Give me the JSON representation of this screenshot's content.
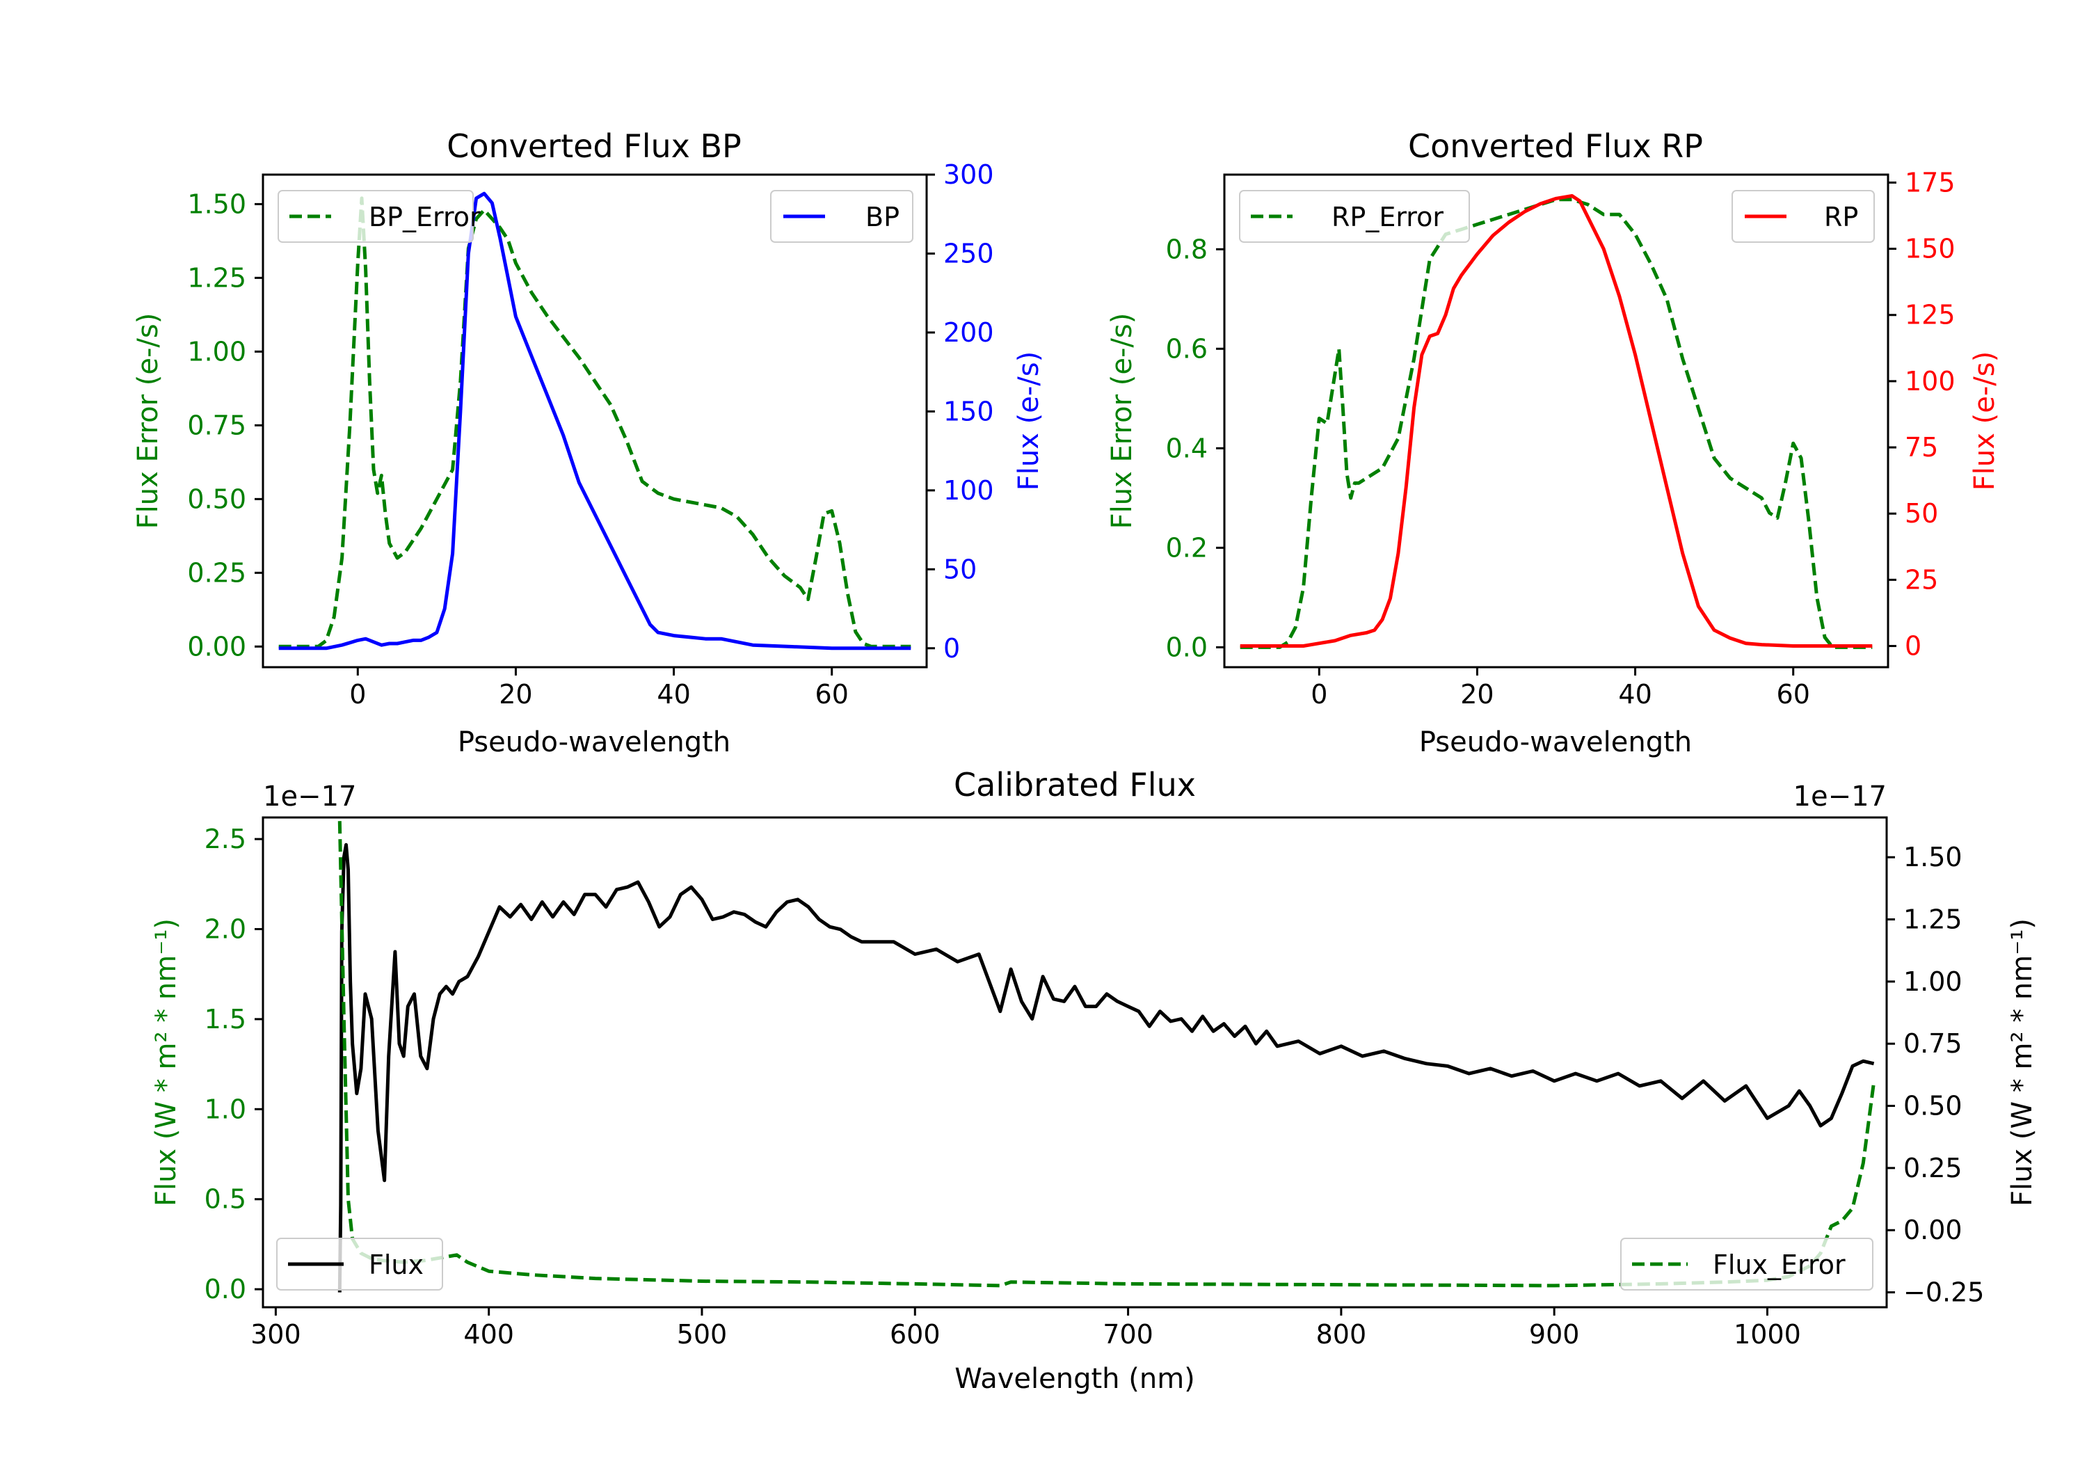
{
  "colors": {
    "bp": "#0000ff",
    "rp": "#ff0000",
    "error": "#008000",
    "flux": "#000000",
    "axis": "#000000"
  },
  "chart_data": [
    {
      "id": "bp",
      "type": "line",
      "title": "Converted Flux BP",
      "xlabel": "Pseudo-wavelength",
      "ylabel_left": "Flux Error (e-/s)",
      "ylabel_right": "Flux (e-/s)",
      "xlim": [
        -12,
        72
      ],
      "ylim_left": [
        -0.07,
        1.6
      ],
      "ylim_right": [
        -12,
        300
      ],
      "xticks": [
        0,
        20,
        40,
        60
      ],
      "xtick_labels": [
        "0",
        "20",
        "40",
        "60"
      ],
      "yticks_left": [
        0,
        0.25,
        0.5,
        0.75,
        1.0,
        1.25,
        1.5
      ],
      "ytick_labels_left": [
        "0.00",
        "0.25",
        "0.50",
        "0.75",
        "1.00",
        "1.25",
        "1.50"
      ],
      "yticks_right": [
        0,
        50,
        100,
        150,
        200,
        250,
        300
      ],
      "ytick_labels_right": [
        "0",
        "50",
        "100",
        "150",
        "200",
        "250",
        "300"
      ],
      "legend_left": {
        "label": "BP_Error",
        "position": "upper-left"
      },
      "legend_right": {
        "label": "BP",
        "position": "upper-right"
      },
      "series": [
        {
          "name": "BP_Error",
          "axis": "left",
          "style": "dashed",
          "color_key": "error",
          "x": [
            -10,
            -5,
            -4,
            -3,
            -2,
            -1,
            0,
            0.5,
            1,
            1.5,
            2,
            2.5,
            3,
            3.5,
            4,
            5,
            6,
            8,
            10,
            12,
            13,
            14,
            15,
            16,
            17,
            18,
            19,
            20,
            22,
            24,
            26,
            28,
            30,
            32,
            34,
            36,
            38,
            40,
            42,
            44,
            46,
            48,
            50,
            52,
            54,
            56,
            57,
            58,
            59,
            60,
            61,
            62,
            63,
            64,
            65,
            70
          ],
          "y": [
            0,
            0,
            0.02,
            0.1,
            0.3,
            0.75,
            1.3,
            1.52,
            1.28,
            0.9,
            0.6,
            0.52,
            0.58,
            0.45,
            0.35,
            0.3,
            0.32,
            0.4,
            0.5,
            0.6,
            0.9,
            1.35,
            1.45,
            1.48,
            1.45,
            1.42,
            1.38,
            1.3,
            1.2,
            1.12,
            1.05,
            0.98,
            0.9,
            0.82,
            0.7,
            0.56,
            0.52,
            0.5,
            0.49,
            0.48,
            0.47,
            0.44,
            0.38,
            0.3,
            0.24,
            0.2,
            0.16,
            0.3,
            0.45,
            0.46,
            0.35,
            0.18,
            0.05,
            0.01,
            0,
            0
          ]
        },
        {
          "name": "BP",
          "axis": "right",
          "style": "solid",
          "color_key": "bp",
          "x": [
            -10,
            -6,
            -4,
            -2,
            0,
            1,
            2,
            3,
            4,
            5,
            6,
            7,
            8,
            9,
            10,
            11,
            12,
            13,
            14,
            15,
            16,
            17,
            18,
            19,
            20,
            22,
            24,
            26,
            28,
            30,
            32,
            34,
            36,
            37,
            38,
            40,
            42,
            44,
            46,
            48,
            50,
            55,
            60,
            70
          ],
          "y": [
            0,
            0,
            0,
            2,
            5,
            6,
            4,
            2,
            3,
            3,
            4,
            5,
            5,
            7,
            10,
            25,
            60,
            150,
            250,
            285,
            288,
            282,
            260,
            235,
            210,
            185,
            160,
            135,
            105,
            85,
            65,
            45,
            25,
            15,
            10,
            8,
            7,
            6,
            6,
            4,
            2,
            1,
            0,
            0
          ]
        }
      ]
    },
    {
      "id": "rp",
      "type": "line",
      "title": "Converted Flux RP",
      "xlabel": "Pseudo-wavelength",
      "ylabel_left": "Flux Error (e-/s)",
      "ylabel_right": "Flux (e-/s)",
      "xlim": [
        -12,
        72
      ],
      "ylim_left": [
        -0.04,
        0.95
      ],
      "ylim_right": [
        -8,
        178
      ],
      "xticks": [
        0,
        20,
        40,
        60
      ],
      "xtick_labels": [
        "0",
        "20",
        "40",
        "60"
      ],
      "yticks_left": [
        0,
        0.2,
        0.4,
        0.6,
        0.8
      ],
      "ytick_labels_left": [
        "0.0",
        "0.2",
        "0.4",
        "0.6",
        "0.8"
      ],
      "yticks_right": [
        0,
        25,
        50,
        75,
        100,
        125,
        150,
        175
      ],
      "ytick_labels_right": [
        "0",
        "25",
        "50",
        "75",
        "100",
        "125",
        "150",
        "175"
      ],
      "legend_left": {
        "label": "RP_Error",
        "position": "upper-left"
      },
      "legend_right": {
        "label": "RP",
        "position": "upper-right"
      },
      "series": [
        {
          "name": "RP_Error",
          "axis": "left",
          "style": "dashed",
          "color_key": "error",
          "x": [
            -10,
            -5,
            -4,
            -3,
            -2,
            -1,
            0,
            1,
            2,
            2.5,
            3,
            3.5,
            4,
            4.5,
            5,
            6,
            8,
            10,
            12,
            14,
            16,
            18,
            20,
            22,
            24,
            26,
            28,
            30,
            32,
            34,
            36,
            38,
            40,
            42,
            44,
            46,
            48,
            50,
            52,
            54,
            56,
            57,
            58,
            59,
            60,
            61,
            62,
            63,
            64,
            65,
            70
          ],
          "y": [
            0,
            0,
            0.01,
            0.04,
            0.12,
            0.3,
            0.46,
            0.45,
            0.55,
            0.6,
            0.48,
            0.35,
            0.3,
            0.33,
            0.33,
            0.34,
            0.36,
            0.42,
            0.58,
            0.78,
            0.83,
            0.84,
            0.85,
            0.86,
            0.87,
            0.88,
            0.89,
            0.9,
            0.9,
            0.89,
            0.87,
            0.87,
            0.83,
            0.77,
            0.7,
            0.58,
            0.48,
            0.38,
            0.34,
            0.32,
            0.3,
            0.27,
            0.26,
            0.33,
            0.41,
            0.38,
            0.25,
            0.1,
            0.02,
            0,
            0
          ]
        },
        {
          "name": "RP",
          "axis": "right",
          "style": "solid",
          "color_key": "rp",
          "x": [
            -10,
            -4,
            -2,
            0,
            2,
            4,
            6,
            7,
            8,
            9,
            10,
            11,
            12,
            13,
            14,
            15,
            16,
            17,
            18,
            20,
            22,
            24,
            26,
            28,
            30,
            32,
            33,
            34,
            36,
            38,
            40,
            42,
            44,
            46,
            48,
            50,
            52,
            54,
            56,
            60,
            65,
            70
          ],
          "y": [
            0,
            0,
            0,
            1,
            2,
            4,
            5,
            6,
            10,
            18,
            35,
            60,
            90,
            110,
            117,
            118,
            125,
            135,
            140,
            148,
            155,
            160,
            164,
            167,
            169,
            170,
            168,
            162,
            150,
            132,
            110,
            85,
            60,
            35,
            15,
            6,
            3,
            1,
            0.5,
            0,
            0,
            0
          ]
        }
      ]
    },
    {
      "id": "calibrated",
      "type": "line",
      "title": "Calibrated Flux",
      "xlabel": "Wavelength (nm)",
      "ylabel_left": "Flux (W * m² * nm⁻¹)",
      "ylabel_right": "Flux (W * m² * nm⁻¹)",
      "offset_left": "1e−17",
      "offset_right": "1e−17",
      "xlim": [
        294,
        1056
      ],
      "ylim_left": [
        -0.1,
        2.62
      ],
      "ylim_right": [
        -0.31,
        1.66
      ],
      "xticks": [
        300,
        400,
        500,
        600,
        700,
        800,
        900,
        1000
      ],
      "xtick_labels": [
        "300",
        "400",
        "500",
        "600",
        "700",
        "800",
        "900",
        "1000"
      ],
      "yticks_left": [
        0,
        0.5,
        1.0,
        1.5,
        2.0,
        2.5
      ],
      "ytick_labels_left": [
        "0.0",
        "0.5",
        "1.0",
        "1.5",
        "2.0",
        "2.5"
      ],
      "yticks_right": [
        -0.25,
        0,
        0.25,
        0.5,
        0.75,
        1.0,
        1.25,
        1.5
      ],
      "ytick_labels_right": [
        "−0.25",
        "0.00",
        "0.25",
        "0.50",
        "0.75",
        "1.00",
        "1.25",
        "1.50"
      ],
      "legend_left": {
        "label": "Flux",
        "position": "lower-left"
      },
      "legend_right": {
        "label": "Flux_Error",
        "position": "lower-right"
      },
      "series": [
        {
          "name": "Flux",
          "axis": "right",
          "style": "solid",
          "color_key": "flux",
          "x": [
            330,
            330.5,
            331,
            332,
            333,
            334,
            335,
            336,
            338,
            340,
            342,
            345,
            348,
            351,
            353,
            356,
            358,
            360,
            362,
            365,
            368,
            371,
            374,
            377,
            380,
            383,
            386,
            390,
            395,
            400,
            405,
            410,
            415,
            420,
            425,
            430,
            435,
            440,
            445,
            450,
            455,
            460,
            465,
            470,
            475,
            480,
            485,
            490,
            495,
            500,
            505,
            510,
            515,
            520,
            525,
            530,
            535,
            540,
            545,
            550,
            555,
            560,
            565,
            570,
            575,
            580,
            590,
            600,
            610,
            620,
            630,
            640,
            645,
            650,
            655,
            660,
            665,
            670,
            675,
            680,
            685,
            690,
            695,
            700,
            705,
            710,
            715,
            720,
            725,
            730,
            735,
            740,
            745,
            750,
            755,
            760,
            765,
            770,
            780,
            790,
            800,
            810,
            820,
            830,
            840,
            850,
            860,
            870,
            880,
            890,
            900,
            910,
            920,
            930,
            940,
            950,
            960,
            970,
            980,
            990,
            1000,
            1010,
            1015,
            1020,
            1025,
            1030,
            1035,
            1040,
            1045,
            1050
          ],
          "y": [
            -0.25,
            0.1,
            1.2,
            1.5,
            1.55,
            1.45,
            1.0,
            0.75,
            0.55,
            0.65,
            0.95,
            0.85,
            0.4,
            0.2,
            0.7,
            1.12,
            0.75,
            0.7,
            0.9,
            0.95,
            0.7,
            0.65,
            0.85,
            0.95,
            0.98,
            0.95,
            1.0,
            1.02,
            1.1,
            1.2,
            1.3,
            1.26,
            1.31,
            1.25,
            1.32,
            1.26,
            1.32,
            1.27,
            1.35,
            1.35,
            1.3,
            1.37,
            1.38,
            1.4,
            1.32,
            1.22,
            1.26,
            1.35,
            1.38,
            1.33,
            1.25,
            1.26,
            1.28,
            1.27,
            1.24,
            1.22,
            1.28,
            1.32,
            1.33,
            1.3,
            1.25,
            1.22,
            1.21,
            1.18,
            1.16,
            1.16,
            1.16,
            1.11,
            1.13,
            1.08,
            1.11,
            0.88,
            1.05,
            0.92,
            0.85,
            1.02,
            0.93,
            0.92,
            0.98,
            0.9,
            0.9,
            0.95,
            0.92,
            0.9,
            0.88,
            0.82,
            0.88,
            0.84,
            0.85,
            0.8,
            0.86,
            0.8,
            0.83,
            0.78,
            0.82,
            0.75,
            0.8,
            0.74,
            0.76,
            0.71,
            0.74,
            0.7,
            0.72,
            0.69,
            0.67,
            0.66,
            0.63,
            0.65,
            0.62,
            0.64,
            0.6,
            0.63,
            0.6,
            0.63,
            0.58,
            0.6,
            0.53,
            0.6,
            0.52,
            0.58,
            0.45,
            0.5,
            0.56,
            0.5,
            0.42,
            0.45,
            0.55,
            0.66,
            0.68,
            0.67
          ]
        },
        {
          "name": "Flux_Error",
          "axis": "left",
          "style": "dashed",
          "color_key": "error",
          "x": [
            330,
            332,
            334,
            336,
            338,
            340,
            345,
            350,
            360,
            370,
            380,
            385,
            390,
            400,
            420,
            450,
            500,
            550,
            600,
            640,
            645,
            700,
            800,
            900,
            950,
            980,
            1000,
            1010,
            1020,
            1025,
            1030,
            1035,
            1040,
            1045,
            1050
          ],
          "y": [
            2.6,
            1.5,
            0.5,
            0.28,
            0.24,
            0.2,
            0.17,
            0.16,
            0.15,
            0.16,
            0.18,
            0.19,
            0.15,
            0.1,
            0.08,
            0.06,
            0.045,
            0.04,
            0.03,
            0.02,
            0.04,
            0.03,
            0.025,
            0.02,
            0.03,
            0.04,
            0.05,
            0.07,
            0.13,
            0.2,
            0.35,
            0.38,
            0.45,
            0.7,
            1.15
          ]
        }
      ]
    }
  ]
}
